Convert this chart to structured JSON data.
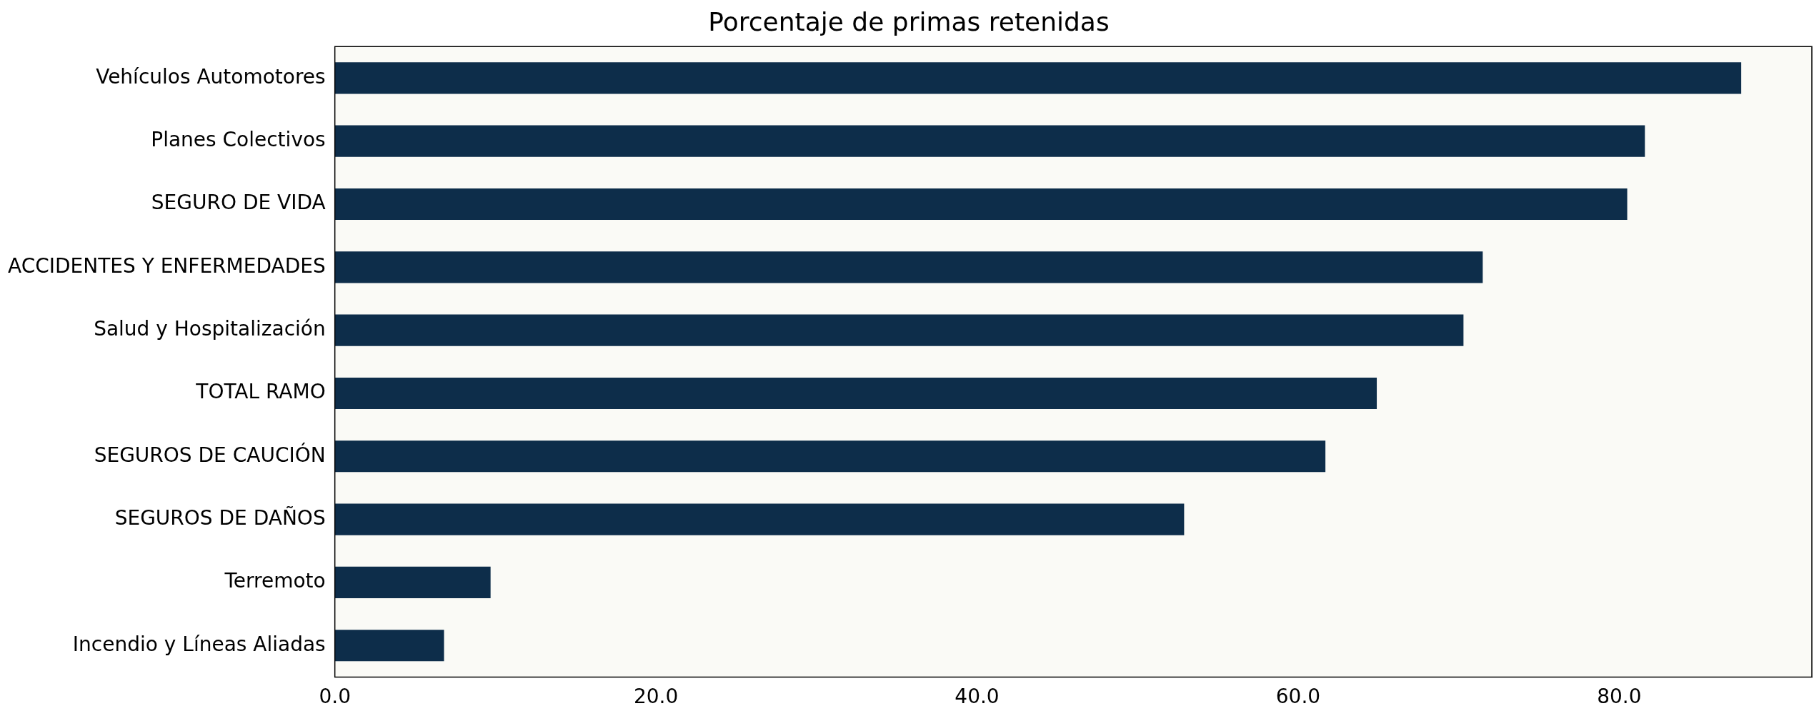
{
  "chart_data": {
    "type": "bar",
    "orientation": "horizontal",
    "title": "Porcentaje de primas retenidas",
    "categories": [
      "Vehículos Automotores",
      "Planes Colectivos",
      "SEGURO DE VIDA",
      "ACCIDENTES Y ENFERMEDADES",
      "Salud y Hospitalización",
      "TOTAL RAMO",
      "SEGUROS DE CAUCIÓN",
      "SEGUROS DE DAÑOS",
      "Terremoto",
      "Incendio y Líneas Aliadas"
    ],
    "values": [
      87.6,
      81.6,
      80.5,
      71.5,
      70.3,
      64.9,
      61.7,
      52.9,
      9.7,
      6.8
    ],
    "color": "#0d2d4a",
    "xlim": [
      0,
      92
    ],
    "xticks": [
      {
        "value": 0,
        "label": "0.0"
      },
      {
        "value": 20,
        "label": "20.0"
      },
      {
        "value": 40,
        "label": "40.0"
      },
      {
        "value": 60,
        "label": "60.0"
      },
      {
        "value": 80,
        "label": "80.0"
      }
    ],
    "grid": false,
    "legend": false
  }
}
